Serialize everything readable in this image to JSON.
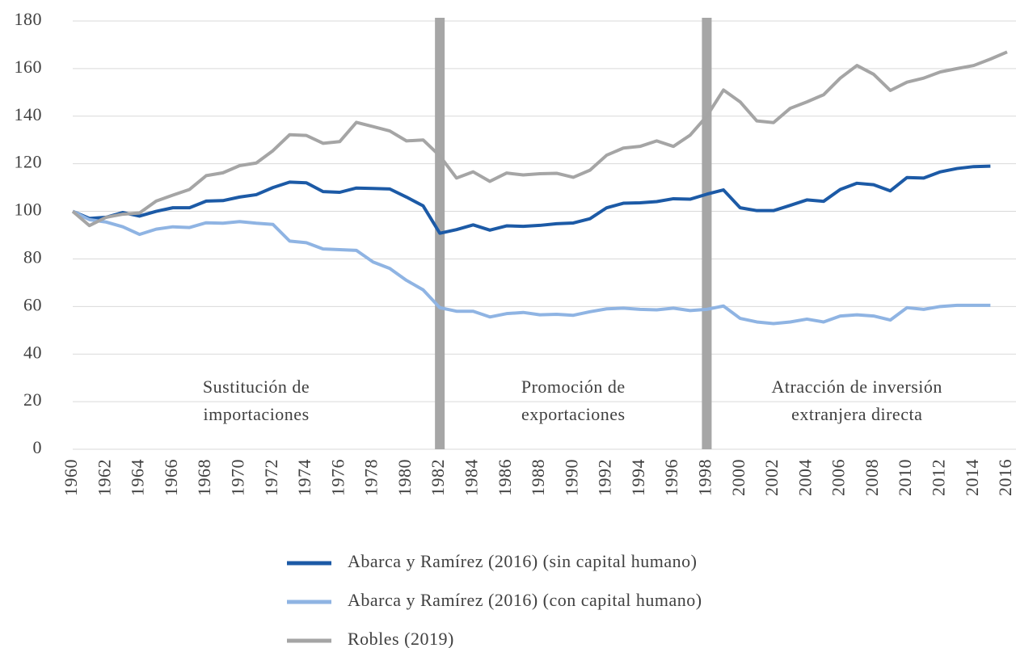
{
  "chart_data": {
    "type": "line",
    "x": [
      1960,
      1961,
      1962,
      1963,
      1964,
      1965,
      1966,
      1967,
      1968,
      1969,
      1970,
      1971,
      1972,
      1973,
      1974,
      1975,
      1976,
      1977,
      1978,
      1979,
      1980,
      1981,
      1982,
      1983,
      1984,
      1985,
      1986,
      1987,
      1988,
      1989,
      1990,
      1991,
      1992,
      1993,
      1994,
      1995,
      1996,
      1997,
      1998,
      1999,
      2000,
      2001,
      2002,
      2003,
      2004,
      2005,
      2006,
      2007,
      2008,
      2009,
      2010,
      2011,
      2012,
      2013,
      2014,
      2015,
      2016
    ],
    "series": [
      {
        "name": "Abarca y Ramírez (2016) (sin capital humano)",
        "color": "#1c5aa6",
        "values": [
          100,
          97,
          97.5,
          99.5,
          98,
          100,
          101.5,
          101.5,
          104.3,
          104.5,
          106,
          107,
          110,
          112.3,
          112,
          108.3,
          108,
          109.8,
          109.6,
          109.4,
          106,
          102.3,
          90.8,
          92.3,
          94.3,
          92.1,
          93.9,
          93.7,
          94.1,
          94.8,
          95.1,
          96.9,
          101.5,
          103.4,
          103.6,
          104.1,
          105.3,
          105.1,
          107.2,
          109,
          101.5,
          100.3,
          100.3,
          102.5,
          104.8,
          104.2,
          109.2,
          111.8,
          111.2,
          108.6,
          114.2,
          114,
          116.6,
          118,
          118.8,
          119,
          null
        ]
      },
      {
        "name": "Abarca y Ramírez (2016) (con capital humano)",
        "color": "#8fb4e3",
        "values": [
          100,
          96.5,
          95.5,
          93.5,
          90.3,
          92.5,
          93.5,
          93.2,
          95.2,
          95,
          95.7,
          95,
          94.5,
          87.5,
          86.8,
          84.2,
          83.9,
          83.6,
          78.7,
          76,
          71,
          67,
          59.5,
          58,
          58,
          55.6,
          57,
          57.5,
          56.5,
          56.7,
          56.3,
          57.8,
          59,
          59.3,
          58.8,
          58.6,
          59.3,
          58.3,
          58.8,
          60.2,
          55,
          53.5,
          52.8,
          53.5,
          54.7,
          53.5,
          56,
          56.5,
          56,
          54.3,
          59.5,
          58.8,
          60,
          60.5,
          60.5,
          60.5,
          null
        ]
      },
      {
        "name": "Robles (2019)",
        "color": "#a5a5a5",
        "values": [
          100,
          94,
          97.5,
          98.8,
          99.3,
          104.3,
          106.8,
          109.2,
          115,
          116.2,
          119.2,
          120.3,
          125.5,
          132.2,
          131.9,
          128.6,
          129.3,
          137.4,
          135.6,
          133.8,
          129.6,
          130,
          123.3,
          114,
          116.6,
          112.6,
          116.1,
          115.3,
          115.8,
          116,
          114.3,
          117.3,
          123.6,
          126.6,
          127.3,
          129.6,
          127.3,
          132,
          140,
          151,
          146,
          138,
          137.3,
          143.3,
          146,
          149,
          156,
          161.3,
          157.6,
          150.8,
          154.3,
          156,
          158.6,
          160,
          161.3,
          164,
          167
        ]
      }
    ],
    "breaks": [
      1982,
      1998
    ],
    "break_color": "#a6a6a6",
    "annotations": [
      {
        "lines": [
          "Sustitución de",
          "importaciones"
        ]
      },
      {
        "lines": [
          "Promoción de",
          "exportaciones"
        ]
      },
      {
        "lines": [
          "Atracción de inversión",
          "extranjera directa"
        ]
      }
    ],
    "xlim": [
      1960,
      2016
    ],
    "xticks": [
      1960,
      1962,
      1964,
      1966,
      1968,
      1970,
      1972,
      1974,
      1976,
      1978,
      1980,
      1982,
      1984,
      1986,
      1988,
      1990,
      1992,
      1994,
      1996,
      1998,
      2000,
      2002,
      2004,
      2006,
      2008,
      2010,
      2012,
      2014,
      2016
    ],
    "ylim": [
      0,
      180
    ],
    "yticks": [
      0,
      20,
      40,
      60,
      80,
      100,
      120,
      140,
      160,
      180
    ],
    "grid": true
  }
}
